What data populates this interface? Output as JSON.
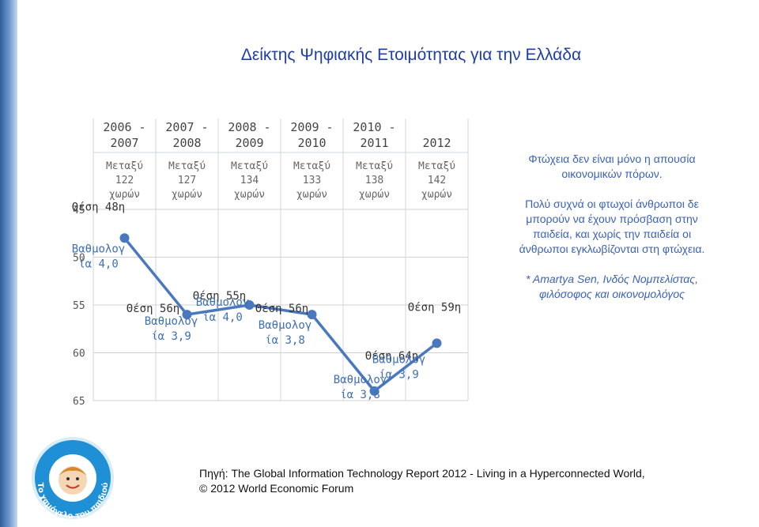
{
  "title": "Δείκτης Ψηφιακής Ετοιμότητας για την Ελλάδα",
  "chart_data": {
    "type": "line",
    "categories": [
      "2006 - 2007",
      "2007 - 2008",
      "2008 - 2009",
      "2009 - 2010",
      "2010 - 2011",
      "2012"
    ],
    "category_lines": [
      [
        "2006 -",
        "2007"
      ],
      [
        "2007 -",
        "2008"
      ],
      [
        "2008 -",
        "2009"
      ],
      [
        "2009 -",
        "2010"
      ],
      [
        "2010 -",
        "2011"
      ],
      [
        "",
        "2012"
      ]
    ],
    "countries_header": [
      [
        "Μεταξύ",
        "122",
        "χωρών"
      ],
      [
        "Μεταξύ",
        "127",
        "χωρών"
      ],
      [
        "Μεταξύ",
        "134",
        "χωρών"
      ],
      [
        "Μεταξύ",
        "133",
        "χωρών"
      ],
      [
        "Μεταξύ",
        "138",
        "χωρών"
      ],
      [
        "Μεταξύ",
        "142",
        "χωρών"
      ]
    ],
    "ranks": [
      48,
      56,
      55,
      56,
      64,
      59
    ],
    "rank_labels": [
      "Θέση 48η",
      "Θέση 56η",
      "Θέση 55η",
      "Θέση 56η",
      "Θέση 64η",
      "Θέση 59η"
    ],
    "score_labels": [
      [
        "Βαθμολογ",
        "ία 4,0"
      ],
      [
        "Βαθμολογ",
        "ία 3,9"
      ],
      [
        "Βαθμολογ",
        "ία 4,0"
      ],
      [
        "Βαθμολογ",
        "ία 3,8"
      ],
      [
        "Βαθμολογ",
        "ία 3,8"
      ],
      [
        "Βαθμολογ",
        "ία 3,9"
      ]
    ],
    "y_axis": {
      "ticks": [
        45,
        50,
        55,
        60,
        65
      ],
      "ylim": [
        45,
        65
      ],
      "inverted": true
    },
    "line_color": "#4a78bf",
    "grid": true
  },
  "quote": {
    "lines1": [
      "Φτώχεια δεν είναι μόνο η απουσία",
      "οικονομικών πόρων."
    ],
    "lines2": [
      "Πολύ συχνά οι φτωχοί άνθρωποι δε",
      "μπορούν να έχουν πρόσβαση στην",
      "παιδεία, και χωρίς την παιδεία οι",
      "άνθρωποι εγκλωβίζονται στη φτώχεια."
    ],
    "author": [
      "* Amartya Sen, Ινδός Νομπελίστας,",
      "φιλόσοφος και οικονομολόγος"
    ]
  },
  "source": {
    "line1": "Πηγή: The Global Information Technology Report 2012 - Living in a Hyperconnected World,",
    "line2": "© 2012 World Economic Forum"
  },
  "logo": {
    "text": "Το χαμόγελο του παιδιού",
    "brand_color": "#1f8fd6"
  }
}
